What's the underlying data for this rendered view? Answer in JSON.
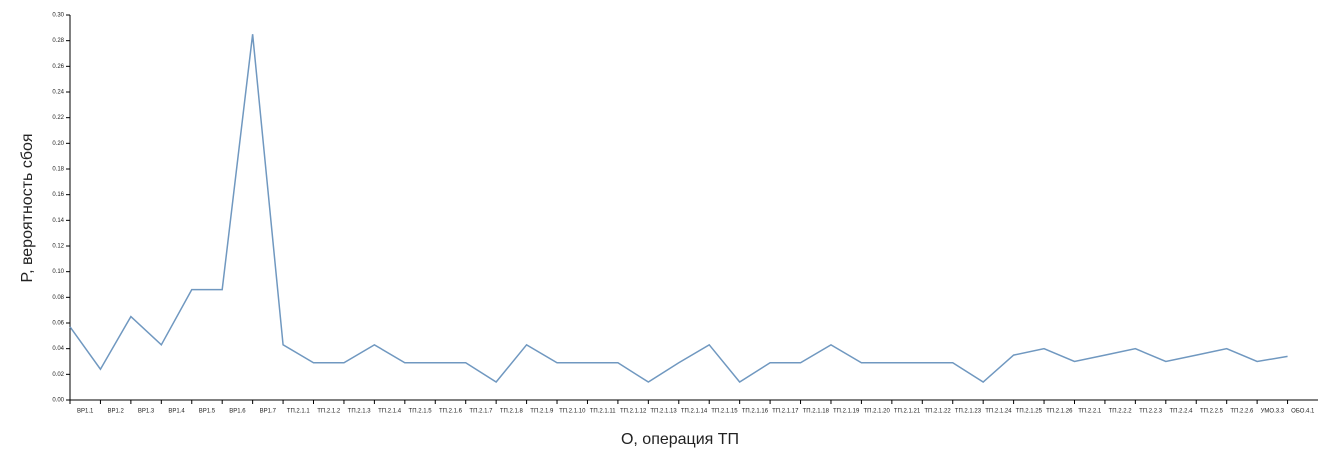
{
  "chart_data": {
    "type": "line",
    "x_label": "O, операция ТП",
    "y_label": "P, вероятность сбоя",
    "categories": [
      "ВР1.1",
      "ВР1.2",
      "ВР1.3",
      "ВР1.4",
      "ВР1.5",
      "ВР1.6",
      "ВР1.7",
      "ТП.2.1.1",
      "ТП.2.1.2",
      "ТП.2.1.3",
      "ТП.2.1.4",
      "ТП.2.1.5",
      "ТП.2.1.6",
      "ТП.2.1.7",
      "ТП.2.1.8",
      "ТП.2.1.9",
      "ТП.2.1.10",
      "ТП.2.1.11",
      "ТП.2.1.12",
      "ТП.2.1.13",
      "ТП.2.1.14",
      "ТП.2.1.15",
      "ТП.2.1.16",
      "ТП.2.1.17",
      "ТП.2.1.18",
      "ТП.2.1.19",
      "ТП.2.1.20",
      "ТП.2.1.21",
      "ТП.2.1.22",
      "ТП.2.1.23",
      "ТП.2.1.24",
      "ТП.2.1.25",
      "ТП.2.1.26",
      "ТП.2.2.1",
      "ТП.2.2.2",
      "ТП.2.2.3",
      "ТП.2.2.4",
      "ТП.2.2.5",
      "ТП.2.2.6",
      "УМО.3.3",
      "ОБО.4.1"
    ],
    "series": [
      {
        "name": "P",
        "color": "#7098c0",
        "values": [
          0.057,
          0.024,
          0.065,
          0.043,
          0.086,
          0.086,
          0.285,
          0.043,
          0.029,
          0.029,
          0.043,
          0.029,
          0.029,
          0.029,
          0.014,
          0.043,
          0.029,
          0.029,
          0.029,
          0.014,
          0.029,
          0.043,
          0.014,
          0.029,
          0.029,
          0.043,
          0.029,
          0.029,
          0.029,
          0.029,
          0.014,
          0.035,
          0.04,
          0.03,
          0.035,
          0.04,
          0.03,
          0.035,
          0.04,
          0.03,
          0.034
        ]
      }
    ],
    "ylim": [
      0,
      0.3
    ],
    "yticks": [
      {
        "value": 0,
        "label": "0.00"
      },
      {
        "value": 0.02,
        "label": "0.02"
      },
      {
        "value": 0.04,
        "label": "0.04"
      },
      {
        "value": 0.06,
        "label": "0.06"
      },
      {
        "value": 0.08,
        "label": "0.08"
      },
      {
        "value": 0.1,
        "label": "0.10"
      },
      {
        "value": 0.12,
        "label": "0.12"
      },
      {
        "value": 0.14,
        "label": "0.14"
      },
      {
        "value": 0.16,
        "label": "0.16"
      },
      {
        "value": 0.18,
        "label": "0.18"
      },
      {
        "value": 0.2,
        "label": "0.20"
      },
      {
        "value": 0.22,
        "label": "0.22"
      },
      {
        "value": 0.24,
        "label": "0.24"
      },
      {
        "value": 0.26,
        "label": "0.26"
      },
      {
        "value": 0.28,
        "label": "0.28"
      },
      {
        "value": 0.3,
        "label": "0.30"
      }
    ]
  }
}
